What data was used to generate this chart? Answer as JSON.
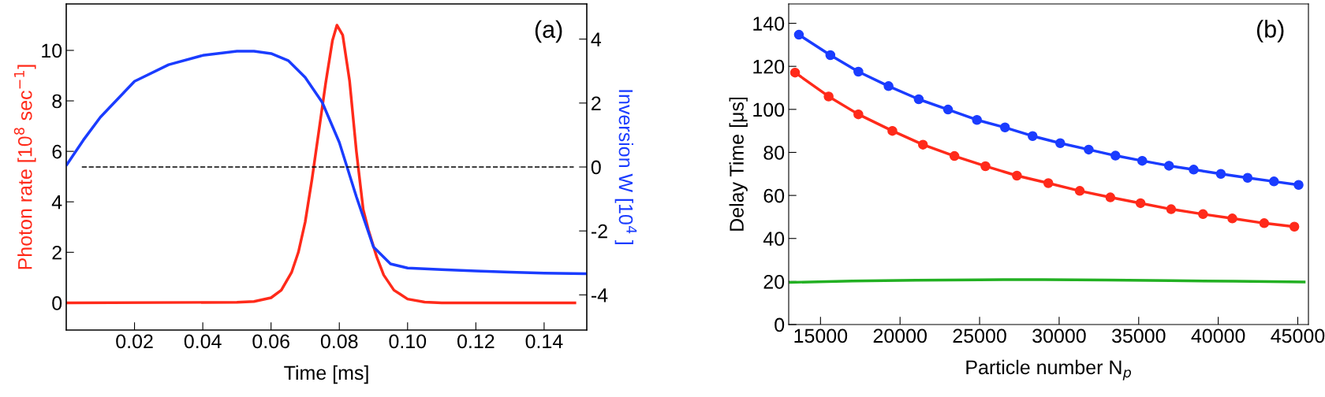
{
  "chart_data": [
    {
      "type": "line",
      "xlabel": "Time [ms]",
      "ylabel": "Photon rate [10$^{8}$ sec$^{−1}$]",
      "y2label": "Inversion W [10$^{4}$ ]",
      "annotations": [
        "(a)"
      ],
      "xlim": [
        0,
        0.1525
      ],
      "ylim": [
        -1.08,
        11.84
      ],
      "y2lim": [
        -5.1,
        5.1
      ],
      "xticks": [
        0.02,
        0.04,
        0.06,
        {
          "value": 0.08,
          "label": "0.08"
        },
        {
          "value": 0.1,
          "label": "0.10"
        },
        {
          "value": 0.12,
          "label": "0.12"
        },
        0.14
      ],
      "yticks": [
        0,
        2,
        4,
        6,
        8,
        10
      ],
      "y2ticks": [
        -4,
        -2,
        0,
        2,
        4
      ],
      "grid": false,
      "legend": false,
      "marker": "none",
      "ref_lines": [
        {
          "axis": "y2",
          "value": 0,
          "color": "#000000",
          "line_style": "dashed"
        }
      ],
      "series": [
        {
          "color": "#ff2a1a",
          "axis": "y",
          "x": [
            0.0,
            0.05,
            0.055,
            0.06,
            0.063,
            0.066,
            0.068,
            0.07,
            0.072,
            0.074,
            0.076,
            0.078,
            0.0793,
            0.081,
            0.083,
            0.085,
            0.087,
            0.0885,
            0.091,
            0.093,
            0.096,
            0.1,
            0.105,
            0.11,
            0.149
          ],
          "values": [
            0,
            0.02,
            0.05,
            0.2,
            0.5,
            1.2,
            2.0,
            3.2,
            4.9,
            6.8,
            8.7,
            10.4,
            11.0,
            10.6,
            8.8,
            6.0,
            3.7,
            2.9,
            1.8,
            1.1,
            0.5,
            0.15,
            0.03,
            0,
            0
          ]
        },
        {
          "color": "#1a3cff",
          "axis": "y2",
          "x": [
            0.0002,
            0.005,
            0.01,
            0.02,
            0.03,
            0.04,
            0.05,
            0.055,
            0.06,
            0.065,
            0.07,
            0.075,
            0.08,
            0.085,
            0.09,
            0.095,
            0.1,
            0.11,
            0.12,
            0.13,
            0.14,
            0.1525
          ],
          "values": [
            0.08,
            0.84,
            1.56,
            2.68,
            3.2,
            3.49,
            3.62,
            3.62,
            3.55,
            3.33,
            2.8,
            2.02,
            0.77,
            -0.93,
            -2.5,
            -3.03,
            -3.16,
            -3.21,
            -3.25,
            -3.29,
            -3.32,
            -3.34
          ]
        }
      ]
    },
    {
      "type": "line",
      "xlabel": "Particle number N$_{p}$",
      "ylabel": "Delay Time [μs]",
      "annotations": [
        "(b)"
      ],
      "xlim": [
        13000,
        45670
      ],
      "ylim": [
        0,
        149
      ],
      "xticks": [
        15000,
        20000,
        25000,
        30000,
        35000,
        40000,
        45000
      ],
      "yticks": [
        0,
        20,
        40,
        60,
        80,
        100,
        120,
        140
      ],
      "grid": false,
      "legend": false,
      "series": [
        {
          "color": "#1a3cff",
          "marker": "circle",
          "x": [
            13641,
            15618,
            17380,
            19277,
            21173,
            23016,
            24833,
            26596,
            28332,
            30068,
            31857,
            33540,
            35223,
            36905,
            38455,
            40164,
            41847,
            43503,
            45052
          ],
          "values": [
            134.7,
            125.2,
            117.5,
            110.8,
            104.7,
            99.9,
            95.1,
            91.6,
            87.6,
            84.3,
            81.3,
            78.5,
            76.1,
            73.8,
            72.0,
            70.0,
            68.2,
            66.5,
            64.9
          ]
        },
        {
          "color": "#ff2a1a",
          "marker": "circle",
          "x": [
            13401,
            15511,
            17380,
            19517,
            21440,
            23417,
            25367,
            27343,
            29320,
            31296,
            33219,
            35116,
            37039,
            39042,
            40885,
            42888,
            44785
          ],
          "values": [
            117.1,
            106.0,
            97.7,
            90.0,
            83.6,
            78.3,
            73.6,
            69.2,
            65.7,
            62.1,
            59.1,
            56.4,
            53.6,
            51.3,
            49.3,
            47.1,
            45.5
          ]
        },
        {
          "color": "#22b022",
          "marker": "none",
          "x": [
            13100,
            17000,
            21000,
            25000,
            29000,
            33000,
            37000,
            41000,
            45400
          ],
          "values": [
            19.6,
            20.2,
            20.6,
            20.8,
            20.9,
            20.7,
            20.4,
            20.1,
            19.8
          ]
        }
      ]
    }
  ]
}
